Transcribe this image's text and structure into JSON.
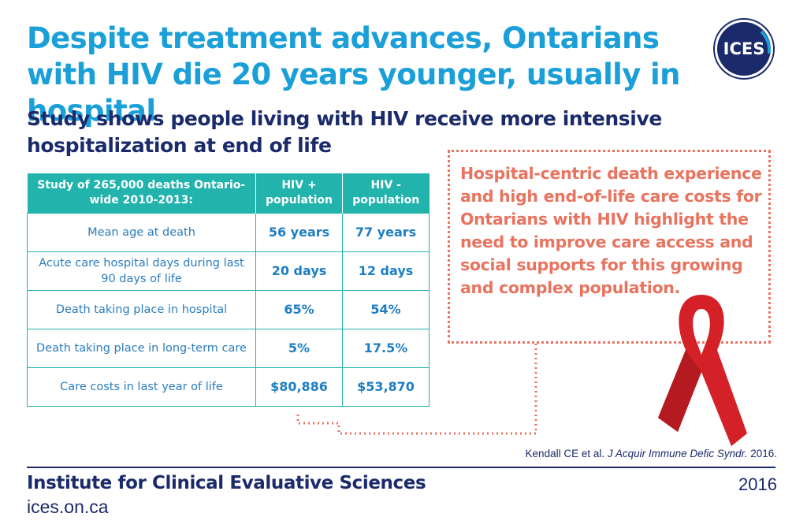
{
  "header": {
    "title": "Despite treatment advances, Ontarians with HIV die 20 years younger, usually in hospital",
    "subtitle": "Study shows people living with HIV receive more intensive hospitalization at end of life",
    "logo_text": "ICES"
  },
  "table": {
    "columns": [
      "Study of 265,000 deaths Ontario-wide 2010-2013:",
      "HIV + population",
      "HIV - population"
    ],
    "rows": [
      {
        "metric": "Mean age at death",
        "hiv_pos": "56 years",
        "hiv_neg": "77 years"
      },
      {
        "metric": "Acute care hospital days during last 90 days of life",
        "hiv_pos": "20 days",
        "hiv_neg": "12 days"
      },
      {
        "metric": "Death taking place in hospital",
        "hiv_pos": "65%",
        "hiv_neg": "54%"
      },
      {
        "metric": "Death taking place in long-term care",
        "hiv_pos": "5%",
        "hiv_neg": "17.5%"
      },
      {
        "metric": "Care costs in last year of life",
        "hiv_pos": "$80,886",
        "hiv_neg": "$53,870"
      }
    ]
  },
  "callout": {
    "text": "Hospital-centric death experience and high end-of-life care costs for Ontarians with HIV highlight the need to improve care access and social supports for this growing and complex population."
  },
  "citation": {
    "authors": "Kendall CE et al.",
    "journal": "J Acquir Immune Defic Syndr.",
    "year": "2016."
  },
  "footer": {
    "organization": "Institute for Clinical Evaluative Sciences",
    "url": "ices.on.ca",
    "year": "2016"
  },
  "colors": {
    "title": "#1a9fd8",
    "subtitle": "#1b2a6b",
    "table_header": "#22b3ad",
    "callout": "#e8735f",
    "ribbon": "#d42027"
  }
}
